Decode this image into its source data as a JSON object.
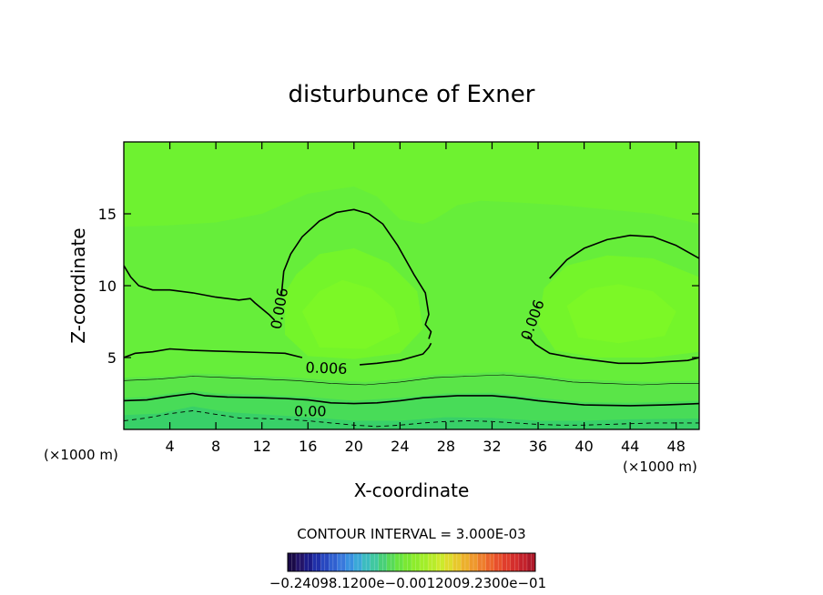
{
  "chart_data": {
    "type": "contour",
    "title": "disturbunce of Exner",
    "xlabel": "X-coordinate",
    "ylabel": "Z-coordinate",
    "x_unit": "(×1000 m)",
    "y_unit": "(×1000 m)",
    "xlim": [
      0,
      50
    ],
    "ylim": [
      0,
      20
    ],
    "x_ticks": [
      4,
      8,
      12,
      16,
      20,
      24,
      28,
      32,
      36,
      40,
      44,
      48
    ],
    "y_ticks": [
      5,
      10,
      15
    ],
    "contour_interval_text": "CONTOUR INTERVAL = 3.000E-03",
    "contour_interval": 0.003,
    "contour_labels": [
      {
        "text": "0.006",
        "x": 13.6,
        "z": 8.4,
        "rotate": -80
      },
      {
        "text": "0.006",
        "x": 35.6,
        "z": 7.6,
        "rotate": -70
      },
      {
        "text": "0.006",
        "x": 17.6,
        "z": 4.2,
        "rotate": 2
      },
      {
        "text": "0.00",
        "x": 16.2,
        "z": 1.2,
        "rotate": 0
      }
    ],
    "contours": [
      {
        "level": 0.006,
        "style": "solid",
        "width": 1.6,
        "points": [
          [
            0,
            11.4
          ],
          [
            0.6,
            10.6
          ],
          [
            1.3,
            10.0
          ],
          [
            2.5,
            9.7
          ],
          [
            4,
            9.7
          ],
          [
            6,
            9.5
          ],
          [
            8,
            9.2
          ],
          [
            10,
            9.0
          ],
          [
            11,
            9.1
          ],
          [
            11.4,
            8.8
          ],
          [
            12.6,
            8.0
          ],
          [
            13.1,
            7.6
          ]
        ]
      },
      {
        "level": 0.006,
        "style": "solid",
        "width": 1.6,
        "points": [
          [
            13.7,
            9.4
          ],
          [
            13.9,
            11.0
          ],
          [
            14.5,
            12.2
          ],
          [
            15.5,
            13.4
          ],
          [
            17,
            14.5
          ],
          [
            18.5,
            15.1
          ],
          [
            20,
            15.3
          ],
          [
            21.3,
            15.0
          ],
          [
            22.5,
            14.3
          ],
          [
            23.8,
            12.8
          ],
          [
            25.2,
            10.8
          ],
          [
            26.2,
            9.5
          ],
          [
            26.5,
            8.0
          ],
          [
            26.2,
            7.3
          ],
          [
            26.7,
            6.8
          ],
          [
            26.5,
            6.3
          ]
        ]
      },
      {
        "level": 0.006,
        "style": "solid",
        "width": 1.6,
        "points": [
          [
            0,
            5.0
          ],
          [
            1,
            5.3
          ],
          [
            2.5,
            5.4
          ],
          [
            4,
            5.6
          ],
          [
            6,
            5.5
          ],
          [
            8,
            5.45
          ],
          [
            10,
            5.4
          ],
          [
            12,
            5.35
          ],
          [
            14,
            5.3
          ],
          [
            15.5,
            5.0
          ]
        ]
      },
      {
        "level": 0.006,
        "style": "solid",
        "width": 1.6,
        "points": [
          [
            20.5,
            4.5
          ],
          [
            22,
            4.6
          ],
          [
            24,
            4.8
          ],
          [
            26,
            5.25
          ],
          [
            26.5,
            5.7
          ],
          [
            26.7,
            6.0
          ]
        ]
      },
      {
        "level": 0.006,
        "style": "solid",
        "width": 1.6,
        "points": [
          [
            37.0,
            10.5
          ],
          [
            38.5,
            11.8
          ],
          [
            40,
            12.6
          ],
          [
            42,
            13.2
          ],
          [
            44,
            13.5
          ],
          [
            46,
            13.4
          ],
          [
            48,
            12.8
          ],
          [
            50,
            11.9
          ]
        ]
      },
      {
        "level": 0.006,
        "style": "solid",
        "width": 1.6,
        "points": [
          [
            35.1,
            6.5
          ],
          [
            35.8,
            5.9
          ],
          [
            37,
            5.3
          ],
          [
            39,
            5.0
          ],
          [
            41,
            4.8
          ],
          [
            43,
            4.6
          ],
          [
            45,
            4.6
          ],
          [
            47,
            4.7
          ],
          [
            49,
            4.8
          ],
          [
            50,
            5.0
          ]
        ]
      },
      {
        "level": 0.003,
        "style": "solid",
        "width": 0.6,
        "points": [
          [
            0,
            3.4
          ],
          [
            3,
            3.5
          ],
          [
            6,
            3.7
          ],
          [
            9,
            3.6
          ],
          [
            12,
            3.5
          ],
          [
            15,
            3.4
          ],
          [
            18,
            3.2
          ],
          [
            21,
            3.1
          ],
          [
            24,
            3.3
          ],
          [
            27,
            3.6
          ],
          [
            30,
            3.7
          ],
          [
            33,
            3.8
          ],
          [
            36,
            3.6
          ],
          [
            39,
            3.3
          ],
          [
            42,
            3.2
          ],
          [
            45,
            3.1
          ],
          [
            48,
            3.2
          ],
          [
            50,
            3.2
          ]
        ]
      },
      {
        "level": 0.0,
        "style": "solid",
        "width": 1.6,
        "points": [
          [
            0,
            2.0
          ],
          [
            2,
            2.05
          ],
          [
            4,
            2.3
          ],
          [
            6,
            2.5
          ],
          [
            7,
            2.35
          ],
          [
            9,
            2.25
          ],
          [
            12,
            2.2
          ],
          [
            14,
            2.15
          ],
          [
            16,
            2.05
          ],
          [
            18,
            1.85
          ],
          [
            20,
            1.8
          ],
          [
            22,
            1.85
          ],
          [
            24,
            2.0
          ],
          [
            26,
            2.2
          ],
          [
            29,
            2.35
          ],
          [
            32,
            2.35
          ],
          [
            34,
            2.2
          ],
          [
            36,
            2.0
          ],
          [
            38,
            1.85
          ],
          [
            40,
            1.7
          ],
          [
            44,
            1.65
          ],
          [
            47,
            1.7
          ],
          [
            50,
            1.8
          ]
        ]
      },
      {
        "level": -0.003,
        "style": "dashed",
        "width": 0.9,
        "points": [
          [
            0,
            0.6
          ],
          [
            2,
            0.8
          ],
          [
            4,
            1.1
          ],
          [
            6,
            1.3
          ],
          [
            8,
            1.05
          ],
          [
            10,
            0.8
          ],
          [
            12,
            0.75
          ],
          [
            14,
            0.7
          ],
          [
            16,
            0.6
          ],
          [
            18,
            0.45
          ],
          [
            20,
            0.3
          ],
          [
            22,
            0.2
          ],
          [
            24,
            0.3
          ],
          [
            26,
            0.45
          ],
          [
            28,
            0.55
          ],
          [
            30,
            0.6
          ],
          [
            32,
            0.55
          ],
          [
            34,
            0.45
          ],
          [
            36,
            0.35
          ],
          [
            38,
            0.3
          ],
          [
            40,
            0.3
          ],
          [
            42,
            0.35
          ],
          [
            44,
            0.4
          ],
          [
            46,
            0.45
          ],
          [
            48,
            0.45
          ],
          [
            50,
            0.45
          ]
        ]
      }
    ],
    "fill": {
      "background": "#66ee3a",
      "bands": [
        {
          "color": "#6ef230",
          "points": [
            [
              0,
              19.99
            ],
            [
              50,
              19.99
            ],
            [
              50,
              14.3
            ],
            [
              46,
              15.0
            ],
            [
              42,
              15.3
            ],
            [
              38,
              15.6
            ],
            [
              34,
              15.8
            ],
            [
              31,
              15.9
            ],
            [
              29,
              15.6
            ],
            [
              27,
              14.6
            ],
            [
              26,
              14.3
            ],
            [
              24,
              14.6
            ],
            [
              22,
              16.2
            ],
            [
              20,
              16.9
            ],
            [
              16,
              16.4
            ],
            [
              12,
              15.0
            ],
            [
              8,
              14.4
            ],
            [
              4,
              14.2
            ],
            [
              0,
              14.1
            ]
          ]
        },
        {
          "color": "#74f52a",
          "points": [
            [
              14,
              9.5
            ],
            [
              15,
              10.8
            ],
            [
              17,
              12.2
            ],
            [
              20,
              12.6
            ],
            [
              23,
              11.6
            ],
            [
              25.5,
              9.6
            ],
            [
              26,
              7.0
            ],
            [
              24,
              5.3
            ],
            [
              20,
              4.9
            ],
            [
              16,
              5.1
            ],
            [
              14,
              6.6
            ]
          ]
        },
        {
          "color": "#74f52a",
          "points": [
            [
              36.5,
              9.8
            ],
            [
              38.5,
              11.4
            ],
            [
              42,
              12.1
            ],
            [
              46,
              11.9
            ],
            [
              50,
              10.6
            ],
            [
              50,
              5.4
            ],
            [
              46,
              5.0
            ],
            [
              41,
              5.0
            ],
            [
              37.5,
              5.5
            ],
            [
              36,
              7.3
            ]
          ]
        },
        {
          "color": "#7cf826",
          "points": [
            [
              15.5,
              8.2
            ],
            [
              17,
              9.6
            ],
            [
              19,
              10.4
            ],
            [
              21.5,
              9.8
            ],
            [
              23.5,
              8.4
            ],
            [
              24,
              6.8
            ],
            [
              21,
              5.6
            ],
            [
              17,
              5.7
            ]
          ]
        },
        {
          "color": "#7cf826",
          "points": [
            [
              38.5,
              8.6
            ],
            [
              40.5,
              9.8
            ],
            [
              43,
              10.1
            ],
            [
              46,
              9.6
            ],
            [
              48,
              8.2
            ],
            [
              47,
              6.5
            ],
            [
              43,
              6.0
            ],
            [
              39.5,
              6.4
            ]
          ]
        },
        {
          "color": "#5ae548",
          "points": [
            [
              0,
              3.6
            ],
            [
              4,
              3.7
            ],
            [
              6,
              3.9
            ],
            [
              9,
              3.8
            ],
            [
              12,
              3.7
            ],
            [
              15,
              3.6
            ],
            [
              18,
              3.4
            ],
            [
              21,
              3.3
            ],
            [
              24,
              3.5
            ],
            [
              27,
              3.8
            ],
            [
              30,
              3.9
            ],
            [
              33,
              4.0
            ],
            [
              36,
              3.8
            ],
            [
              39,
              3.5
            ],
            [
              42,
              3.4
            ],
            [
              46,
              3.3
            ],
            [
              50,
              3.4
            ],
            [
              50,
              0
            ],
            [
              0,
              0
            ]
          ]
        },
        {
          "color": "#48dc58",
          "points": [
            [
              0,
              2.2
            ],
            [
              2,
              2.25
            ],
            [
              4,
              2.5
            ],
            [
              6,
              2.7
            ],
            [
              8,
              2.5
            ],
            [
              12,
              2.4
            ],
            [
              16,
              2.25
            ],
            [
              20,
              2.0
            ],
            [
              24,
              2.2
            ],
            [
              28,
              2.5
            ],
            [
              32,
              2.55
            ],
            [
              36,
              2.2
            ],
            [
              40,
              1.9
            ],
            [
              44,
              1.85
            ],
            [
              50,
              2.0
            ],
            [
              50,
              0
            ],
            [
              0,
              0
            ]
          ]
        },
        {
          "color": "#38d068",
          "points": [
            [
              0,
              1.0
            ],
            [
              3,
              1.1
            ],
            [
              6,
              1.6
            ],
            [
              9,
              1.2
            ],
            [
              13,
              1.0
            ],
            [
              17,
              0.8
            ],
            [
              20,
              0.6
            ],
            [
              24,
              0.6
            ],
            [
              28,
              0.85
            ],
            [
              32,
              0.8
            ],
            [
              36,
              0.6
            ],
            [
              40,
              0.6
            ],
            [
              44,
              0.7
            ],
            [
              50,
              0.75
            ],
            [
              50,
              0
            ],
            [
              0,
              0
            ]
          ]
        }
      ]
    },
    "colorbar": {
      "colors": [
        "#1a0a48",
        "#231468",
        "#1c1c88",
        "#2030a8",
        "#2848c0",
        "#3060d0",
        "#3878dc",
        "#3890e0",
        "#3aa8d8",
        "#3cbcc0",
        "#40c8a0",
        "#48d078",
        "#58da58",
        "#68e440",
        "#7ae832",
        "#8eec2c",
        "#a2ee2a",
        "#b8ec2a",
        "#ccea2c",
        "#dedc2c",
        "#e8c82c",
        "#ecb02c",
        "#ee982c",
        "#ee7e2c",
        "#ec662c",
        "#e8502c",
        "#e03e2c",
        "#d42e2c",
        "#c4222c",
        "#b01a2a"
      ],
      "label_text": "−0.24098.1200e−0.0012009.2300e−01"
    }
  }
}
